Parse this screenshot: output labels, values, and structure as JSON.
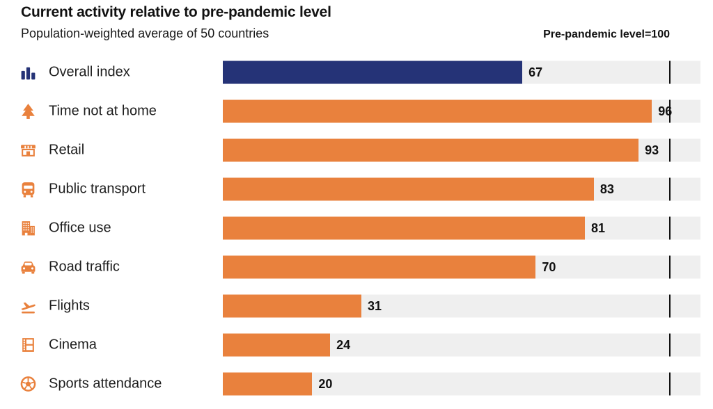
{
  "header": {
    "title": "Current activity relative to pre-pandemic level",
    "subtitle": "Population-weighted average of 50 countries",
    "note": "Pre-pandemic level=100"
  },
  "chart_data": {
    "type": "bar",
    "orientation": "horizontal",
    "title": "Current activity relative to pre-pandemic level",
    "subtitle": "Population-weighted average of 50 countries",
    "note": "Pre-pandemic level=100",
    "reference_value": 100,
    "xlim": [
      0,
      107
    ],
    "grid": false,
    "legend": "none",
    "categories": [
      "Overall index",
      "Time not at home",
      "Retail",
      "Public transport",
      "Office use",
      "Road traffic",
      "Flights",
      "Cinema",
      "Sports attendance"
    ],
    "values": [
      67,
      96,
      93,
      83,
      81,
      70,
      31,
      24,
      20
    ],
    "icons": [
      "bar-chart-icon",
      "tree-icon",
      "storefront-icon",
      "bus-icon",
      "office-building-icon",
      "car-icon",
      "plane-takeoff-icon",
      "film-strip-icon",
      "football-icon"
    ],
    "highlight_index": 0,
    "colors": {
      "highlight": "#253377",
      "default": "#e9813d",
      "track": "#efefef",
      "reference_line": "#111111"
    }
  }
}
